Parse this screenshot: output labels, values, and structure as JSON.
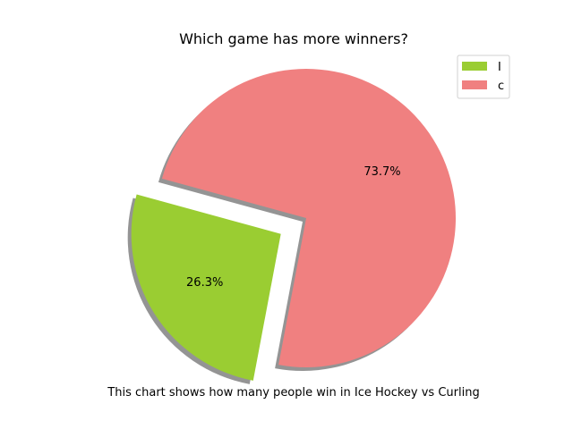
{
  "chart_data": {
    "type": "pie",
    "title": "Which game has more winners?",
    "caption": "This chart shows how many people win in Ice Hockey vs Curling",
    "slices": [
      {
        "label": "I",
        "value": 26.3,
        "pct_label": "26.3%",
        "color": "#9acd32",
        "exploded": true
      },
      {
        "label": "c",
        "value": 73.7,
        "pct_label": "73.7%",
        "color": "#f08080",
        "exploded": false
      }
    ],
    "shadow": true,
    "legend_placement": "top-right"
  }
}
